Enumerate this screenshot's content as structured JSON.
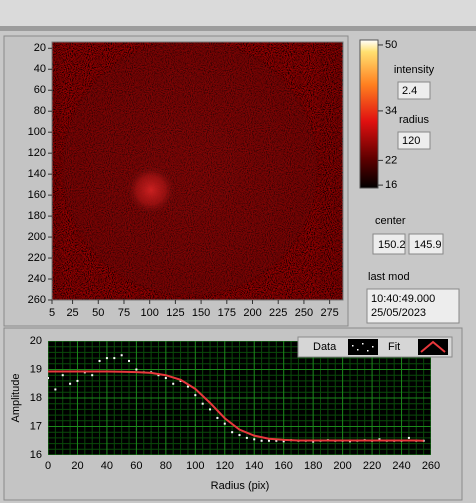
{
  "intensity_graph": {
    "xlim": [
      5,
      288
    ],
    "ylim": [
      14,
      260
    ],
    "xticks": [
      5,
      25,
      50,
      75,
      100,
      125,
      150,
      175,
      200,
      225,
      250,
      275
    ],
    "yticks": [
      20,
      40,
      60,
      80,
      100,
      120,
      140,
      160,
      180,
      200,
      220,
      240,
      260
    ]
  },
  "colorbar": {
    "lim": [
      15.3,
      51.2
    ],
    "ticks": [
      50,
      34,
      22,
      16
    ]
  },
  "controls": {
    "intensity_label": "intensity",
    "intensity": "2.4",
    "radius_label": "radius",
    "radius": "120",
    "center_label": "center",
    "center": [
      "150.2",
      "145.9"
    ],
    "last_mod_label": "last mod",
    "last_mod": [
      "10:40:49.000",
      "25/05/2023"
    ]
  },
  "fit_graph": {
    "x_label": "Radius (pix)",
    "y_label": "Amplitude",
    "xlim": [
      0,
      260
    ],
    "ylim": [
      16,
      20
    ],
    "xticks": [
      0,
      20,
      40,
      60,
      80,
      100,
      120,
      140,
      160,
      180,
      200,
      220,
      240,
      260
    ],
    "yticks": [
      16,
      17,
      18,
      19,
      20
    ],
    "grid": true,
    "series": [
      {
        "name": "Data",
        "color": "#ffffff",
        "style": "points",
        "x": [
          0,
          5,
          10,
          15,
          20,
          25,
          30,
          35,
          40,
          45,
          50,
          55,
          60,
          65,
          70,
          75,
          80,
          85,
          90,
          95,
          100,
          105,
          110,
          115,
          120,
          125,
          130,
          135,
          140,
          145,
          150,
          155,
          160,
          165,
          170,
          175,
          180,
          185,
          190,
          195,
          200,
          205,
          210,
          215,
          220,
          225,
          230,
          235,
          240,
          245,
          250,
          255
        ],
        "values": [
          18.7,
          18.3,
          18.8,
          18.5,
          18.6,
          18.9,
          18.8,
          19.3,
          19.4,
          19.4,
          19.5,
          19.3,
          19.0,
          18.9,
          18.9,
          18.8,
          18.7,
          18.5,
          18.6,
          18.4,
          18.1,
          17.8,
          17.6,
          17.3,
          17.1,
          16.8,
          16.7,
          16.6,
          16.55,
          16.5,
          16.5,
          16.5,
          16.48,
          16.52,
          16.5,
          16.5,
          16.47,
          16.5,
          16.52,
          16.5,
          16.5,
          16.48,
          16.5,
          16.52,
          16.5,
          16.55,
          16.5,
          16.5,
          16.5,
          16.6,
          16.5,
          16.5
        ]
      },
      {
        "name": "Fit",
        "color": "#e8383c",
        "style": "line",
        "x": [
          0,
          10,
          20,
          30,
          40,
          50,
          60,
          70,
          80,
          90,
          100,
          110,
          120,
          130,
          140,
          150,
          160,
          170,
          180,
          190,
          200,
          210,
          220,
          230,
          240,
          250,
          255
        ],
        "values": [
          18.93,
          18.93,
          18.93,
          18.93,
          18.93,
          18.92,
          18.91,
          18.88,
          18.8,
          18.64,
          18.32,
          17.83,
          17.29,
          16.89,
          16.68,
          16.57,
          16.53,
          16.51,
          16.51,
          16.51,
          16.51,
          16.51,
          16.51,
          16.51,
          16.51,
          16.51,
          16.5
        ]
      }
    ]
  }
}
